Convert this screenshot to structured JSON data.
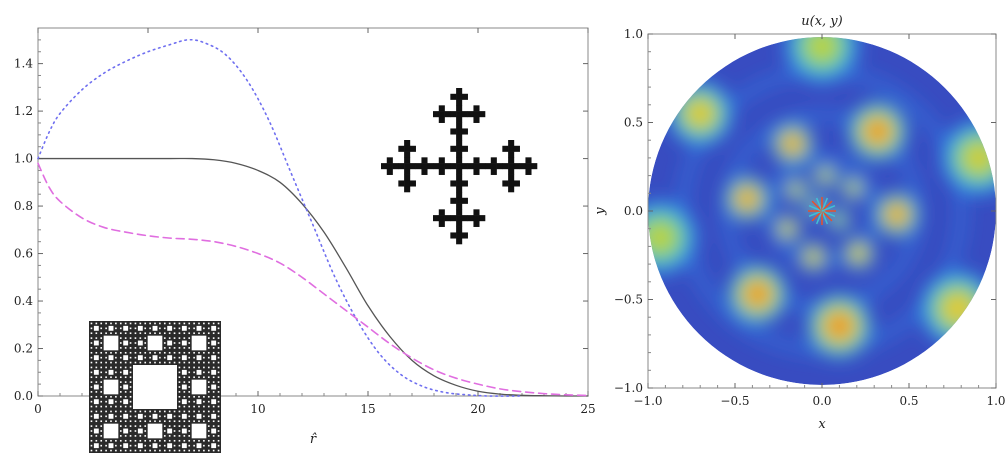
{
  "chart_data": [
    {
      "type": "line",
      "title": "",
      "xlabel": "r̂",
      "ylabel": "",
      "xlim": [
        0,
        25
      ],
      "ylim": [
        0,
        1.55
      ],
      "grid": false,
      "x_ticks": [
        "0",
        "5",
        "10",
        "15",
        "20",
        "25"
      ],
      "y_ticks": [
        "0.0",
        "0.2",
        "0.4",
        "0.6",
        "0.8",
        "1.0",
        "1.2",
        "1.4"
      ],
      "series": [
        {
          "style": "solid",
          "color": "#555555",
          "x": [
            0,
            2,
            4,
            6,
            7,
            8,
            9,
            10,
            11,
            12,
            13,
            14,
            15,
            16,
            17,
            18,
            19,
            20,
            21,
            22,
            23,
            24,
            25
          ],
          "y": [
            1.0,
            1.0,
            1.0,
            1.0,
            1.0,
            0.995,
            0.98,
            0.95,
            0.9,
            0.81,
            0.69,
            0.54,
            0.38,
            0.25,
            0.15,
            0.085,
            0.045,
            0.02,
            0.008,
            0.003,
            0.001,
            0.0,
            0.0
          ]
        },
        {
          "style": "dotted",
          "color": "#6f6ff0",
          "x": [
            0,
            0.5,
            1,
            2,
            3,
            4,
            5,
            6,
            6.8,
            7.5,
            8.5,
            9.5,
            10.5,
            11.5,
            12.5,
            13.5,
            14.5,
            15.5,
            16.5,
            17.5,
            18.5,
            19.5,
            20.5,
            22
          ],
          "y": [
            1.0,
            1.11,
            1.19,
            1.29,
            1.36,
            1.41,
            1.45,
            1.48,
            1.5,
            1.49,
            1.44,
            1.33,
            1.16,
            0.94,
            0.72,
            0.5,
            0.32,
            0.18,
            0.09,
            0.04,
            0.015,
            0.005,
            0.0,
            0.0
          ]
        },
        {
          "style": "dashed",
          "color": "#e06ee0",
          "x": [
            0,
            0.5,
            1,
            2,
            3,
            4,
            5,
            6,
            7,
            8,
            9,
            10,
            11,
            12,
            13,
            14,
            15,
            16,
            17,
            18,
            19,
            20,
            21,
            22,
            23,
            24,
            25
          ],
          "y": [
            0.98,
            0.88,
            0.82,
            0.75,
            0.71,
            0.69,
            0.675,
            0.665,
            0.66,
            0.65,
            0.63,
            0.6,
            0.56,
            0.5,
            0.43,
            0.36,
            0.29,
            0.22,
            0.16,
            0.11,
            0.075,
            0.05,
            0.03,
            0.018,
            0.01,
            0.005,
            0.002
          ]
        }
      ],
      "insets": [
        "sierpinski-carpet",
        "vicsek-cross-fractal"
      ]
    },
    {
      "type": "heatmap",
      "title": "u(x, y)",
      "xlabel": "x",
      "ylabel": "y",
      "xlim": [
        -1.0,
        1.0
      ],
      "ylim": [
        -1.0,
        1.0
      ],
      "x_ticks": [
        "−1.0",
        "−0.5",
        "0.0",
        "0.5",
        "1.0"
      ],
      "y_ticks": [
        "−1.0",
        "−0.5",
        "0.0",
        "0.5",
        "1.0"
      ],
      "domain": "unit-disk",
      "colormap": [
        "#3b3bb5",
        "#2f7fe6",
        "#3fc1d6",
        "#9ad94a",
        "#f2c43a",
        "#e8502a"
      ],
      "blobs": [
        {
          "x": 0.0,
          "y": 0.93,
          "r": 0.15,
          "v": 0.75
        },
        {
          "x": 0.32,
          "y": 0.45,
          "r": 0.12,
          "v": 1.0
        },
        {
          "x": -0.17,
          "y": 0.38,
          "r": 0.085,
          "v": 1.0
        },
        {
          "x": -0.7,
          "y": 0.55,
          "r": 0.13,
          "v": 0.85
        },
        {
          "x": 0.9,
          "y": 0.3,
          "r": 0.15,
          "v": 0.8
        },
        {
          "x": -0.43,
          "y": 0.07,
          "r": 0.09,
          "v": 1.0
        },
        {
          "x": 0.43,
          "y": -0.02,
          "r": 0.09,
          "v": 1.0
        },
        {
          "x": -0.93,
          "y": -0.15,
          "r": 0.15,
          "v": 0.75
        },
        {
          "x": -0.37,
          "y": -0.47,
          "r": 0.12,
          "v": 1.0
        },
        {
          "x": 0.1,
          "y": -0.65,
          "r": 0.13,
          "v": 1.0
        },
        {
          "x": 0.78,
          "y": -0.55,
          "r": 0.15,
          "v": 0.85
        },
        {
          "x": 0.21,
          "y": -0.24,
          "r": 0.065,
          "v": 0.95
        },
        {
          "x": -0.05,
          "y": -0.26,
          "r": 0.06,
          "v": 0.95
        },
        {
          "x": -0.2,
          "y": -0.1,
          "r": 0.055,
          "v": 0.95
        },
        {
          "x": -0.15,
          "y": 0.12,
          "r": 0.05,
          "v": 0.9
        },
        {
          "x": 0.02,
          "y": 0.2,
          "r": 0.05,
          "v": 0.9
        },
        {
          "x": 0.18,
          "y": 0.13,
          "r": 0.05,
          "v": 0.9
        },
        {
          "x": 0.1,
          "y": -0.05,
          "r": 0.045,
          "v": 0.8
        },
        {
          "x": -0.03,
          "y": 0.02,
          "r": 0.045,
          "v": 0.8
        }
      ]
    }
  ]
}
